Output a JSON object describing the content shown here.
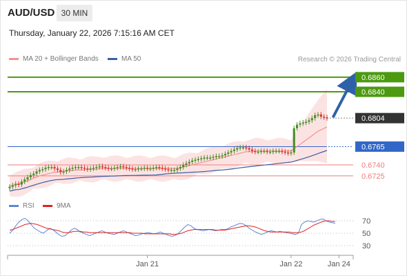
{
  "header": {
    "symbol": "AUD/USD",
    "interval": "30 MIN",
    "timestamp": "Thursday, January 22, 2026 7:15:16 AM CET",
    "credit": "Research © 2026 Trading Central"
  },
  "colors": {
    "resistance": "#4c9a0f",
    "support": "#f27c7c",
    "pivot": "#3267c8",
    "arrow": "#2f61a8",
    "ma20": "#f79090",
    "ma50": "#3a5ea0",
    "bollinger_fill": "#fbdada",
    "candle_up": "#4f8f2a",
    "candle_down": "#d63b2e",
    "rsi": "#5c86d6",
    "rsi_ma": "#e02020",
    "current_price_bg": "#333333"
  },
  "chart_data": [
    {
      "type": "candlestick",
      "y_unit": "price",
      "ylim": [
        0.6705,
        0.6875
      ],
      "legend": [
        {
          "label": "MA 20 + Bollinger Bands",
          "color": "#f79090"
        },
        {
          "label": "MA 50",
          "color": "#3a5ea0"
        }
      ],
      "x_ticks": [
        {
          "label": "Jan 21",
          "index": 46
        },
        {
          "label": "Jan 22",
          "index": 94
        },
        {
          "label": "Jan 24",
          "index": 110
        }
      ],
      "levels": [
        {
          "value": "0.6860",
          "price": 0.686,
          "kind": "resistance"
        },
        {
          "value": "0.6840",
          "price": 0.684,
          "kind": "resistance"
        },
        {
          "value": "0.6804",
          "price": 0.6804,
          "kind": "current"
        },
        {
          "value": "0.6765",
          "price": 0.6765,
          "kind": "pivot"
        },
        {
          "value": "0.6740",
          "price": 0.674,
          "kind": "support"
        },
        {
          "value": "0.6725",
          "price": 0.6725,
          "kind": "support"
        }
      ],
      "arrow": {
        "from_index": 108,
        "from_price": 0.6805,
        "to_price": 0.686
      },
      "close": [
        0.671,
        0.6712,
        0.6714,
        0.6713,
        0.6717,
        0.672,
        0.6723,
        0.6726,
        0.6728,
        0.6731,
        0.6733,
        0.6734,
        0.6736,
        0.6737,
        0.6737,
        0.6735,
        0.6733,
        0.673,
        0.6731,
        0.6733,
        0.6735,
        0.6736,
        0.6737,
        0.6737,
        0.6736,
        0.6735,
        0.6734,
        0.6735,
        0.6736,
        0.6737,
        0.6738,
        0.6737,
        0.6736,
        0.6735,
        0.6735,
        0.6736,
        0.6737,
        0.6738,
        0.6737,
        0.6736,
        0.6735,
        0.6734,
        0.6734,
        0.6735,
        0.6735,
        0.6736,
        0.6735,
        0.6735,
        0.6736,
        0.6737,
        0.6736,
        0.6735,
        0.6734,
        0.6733,
        0.6733,
        0.6733,
        0.6735,
        0.6737,
        0.674,
        0.6742,
        0.6744,
        0.6746,
        0.6747,
        0.6748,
        0.6749,
        0.675,
        0.675,
        0.675,
        0.6751,
        0.6752,
        0.6752,
        0.6753,
        0.6755,
        0.6757,
        0.6759,
        0.6761,
        0.6763,
        0.6764,
        0.6764,
        0.6763,
        0.6761,
        0.6759,
        0.6758,
        0.6758,
        0.6759,
        0.6759,
        0.6758,
        0.6758,
        0.6759,
        0.6759,
        0.6759,
        0.6758,
        0.6757,
        0.6756,
        0.6757,
        0.679,
        0.6795,
        0.6797,
        0.6798,
        0.6799,
        0.6801,
        0.6804,
        0.6808,
        0.6809,
        0.6806,
        0.6805,
        0.6804
      ],
      "ma20": [
        0.6711,
        0.6712,
        0.6713,
        0.6714,
        0.6715,
        0.6717,
        0.6718,
        0.672,
        0.6722,
        0.6723,
        0.6725,
        0.6726,
        0.6727,
        0.6728,
        0.6729,
        0.673,
        0.673,
        0.6731,
        0.6731,
        0.6732,
        0.6732,
        0.6732,
        0.6733,
        0.6733,
        0.6733,
        0.6733,
        0.6734,
        0.6734,
        0.6734,
        0.6734,
        0.6735,
        0.6735,
        0.6735,
        0.6735,
        0.6735,
        0.6735,
        0.6735,
        0.6735,
        0.6735,
        0.6735,
        0.6735,
        0.6735,
        0.6735,
        0.6735,
        0.6735,
        0.6735,
        0.6735,
        0.6735,
        0.6735,
        0.6735,
        0.6735,
        0.6735,
        0.6735,
        0.6735,
        0.6735,
        0.6735,
        0.6735,
        0.6736,
        0.6737,
        0.6738,
        0.6739,
        0.674,
        0.6741,
        0.6742,
        0.6743,
        0.6744,
        0.6745,
        0.6746,
        0.6747,
        0.6748,
        0.6749,
        0.675,
        0.6751,
        0.6752,
        0.6753,
        0.6754,
        0.6755,
        0.6756,
        0.6757,
        0.6758,
        0.6758,
        0.6758,
        0.6759,
        0.6759,
        0.6759,
        0.6759,
        0.6759,
        0.6759,
        0.6759,
        0.6759,
        0.6759,
        0.6759,
        0.6759,
        0.6759,
        0.6759,
        0.6762,
        0.6765,
        0.6768,
        0.6771,
        0.6774,
        0.6777,
        0.678,
        0.6783,
        0.6786,
        0.6788,
        0.679,
        0.6792
      ]
    },
    {
      "type": "line",
      "ylim": [
        20,
        80
      ],
      "legend": [
        {
          "label": "RSI",
          "color": "#5c86d6"
        },
        {
          "label": "9MA",
          "color": "#e02020"
        }
      ],
      "y_ticks": [
        70,
        50,
        30
      ],
      "series": [
        {
          "name": "RSI",
          "values": [
            50,
            55,
            62,
            68,
            72,
            74,
            70,
            64,
            58,
            55,
            52,
            50,
            54,
            58,
            56,
            52,
            48,
            45,
            46,
            50,
            55,
            58,
            56,
            52,
            50,
            48,
            46,
            48,
            50,
            52,
            54,
            52,
            50,
            49,
            48,
            50,
            52,
            54,
            52,
            50,
            48,
            46,
            47,
            49,
            50,
            51,
            50,
            49,
            50,
            52,
            50,
            48,
            46,
            45,
            47,
            50,
            55,
            60,
            64,
            62,
            58,
            56,
            55,
            54,
            55,
            56,
            55,
            54,
            55,
            56,
            56,
            57,
            60,
            62,
            64,
            66,
            65,
            62,
            58,
            55,
            52,
            50,
            48,
            50,
            52,
            54,
            53,
            52,
            53,
            52,
            51,
            50,
            49,
            48,
            50,
            64,
            68,
            70,
            69,
            68,
            70,
            72,
            73,
            70,
            68,
            67,
            66
          ]
        },
        {
          "name": "9MA",
          "values": [
            55,
            56,
            58,
            60,
            62,
            64,
            65,
            66,
            65,
            64,
            62,
            60,
            58,
            57,
            56,
            55,
            54,
            52,
            51,
            51,
            52,
            53,
            53,
            53,
            52,
            52,
            51,
            51,
            51,
            51,
            51,
            51,
            51,
            51,
            51,
            51,
            51,
            51,
            51,
            51,
            50,
            50,
            50,
            50,
            49,
            49,
            49,
            49,
            49,
            49,
            49,
            49,
            49,
            48,
            48,
            49,
            50,
            52,
            54,
            55,
            56,
            56,
            56,
            56,
            56,
            56,
            56,
            55,
            55,
            55,
            55,
            56,
            57,
            58,
            59,
            60,
            61,
            62,
            62,
            61,
            60,
            58,
            56,
            54,
            53,
            52,
            52,
            52,
            52,
            52,
            52,
            52,
            51,
            51,
            51,
            52,
            54,
            57,
            60,
            63,
            65,
            67,
            69,
            70,
            70,
            69,
            69
          ]
        }
      ]
    }
  ]
}
